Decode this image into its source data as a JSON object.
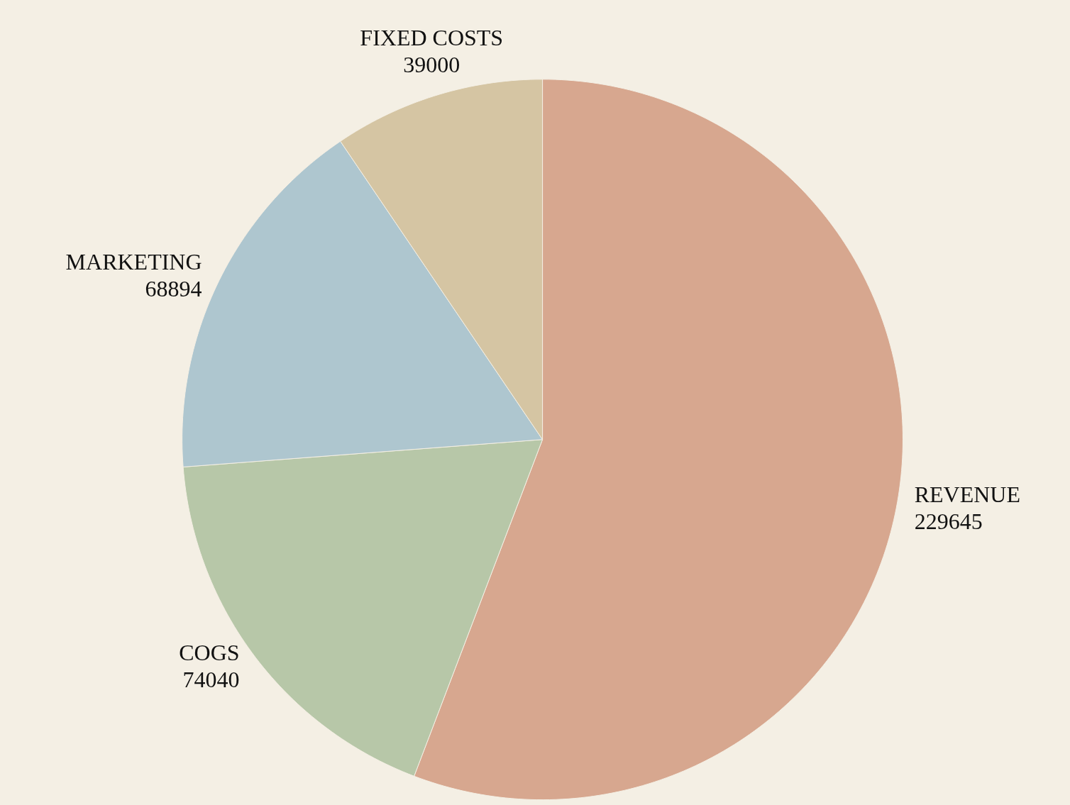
{
  "chart_data": {
    "type": "pie",
    "categories": [
      "REVENUE",
      "COGS",
      "MARKETING",
      "FIXED COSTS"
    ],
    "values": [
      229645,
      74040,
      68894,
      39000
    ],
    "colors": [
      "#d7a78f",
      "#b7c7a8",
      "#aec6cf",
      "#d5c5a3"
    ],
    "data_labels": true
  }
}
